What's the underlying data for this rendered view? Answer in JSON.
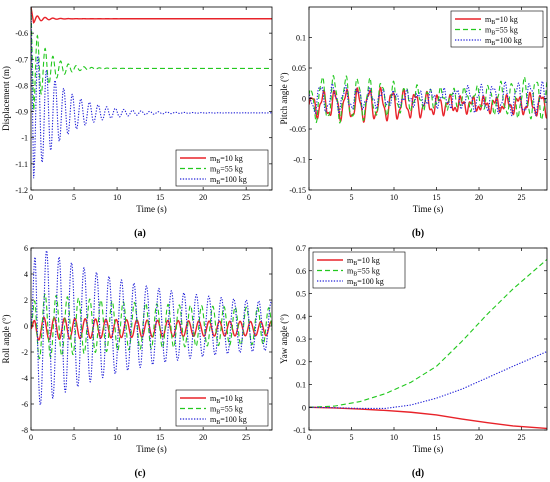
{
  "chart_data": [
    {
      "panel": "a",
      "caption": "(a)",
      "type": "line",
      "xlabel": "Time (s)",
      "ylabel": "Displacement (m)",
      "xlim": [
        0,
        28
      ],
      "ylim": [
        -1.2,
        -0.5
      ],
      "xticks": [
        0,
        5,
        10,
        15,
        20,
        25
      ],
      "yticks": [
        -1.2,
        -1.1,
        -1,
        -0.9,
        -0.8,
        -0.7,
        -0.6
      ],
      "legend_position": "bottom-right",
      "legend": [
        {
          "label": "mB=10 kg",
          "sub": "B",
          "text_pre": "m",
          "text_post": "=10 kg",
          "color": "#e8232a",
          "style": "solid"
        },
        {
          "label": "mB=55 kg",
          "sub": "B",
          "text_pre": "m",
          "text_post": "=55 kg",
          "color": "#22c81e",
          "style": "dashed"
        },
        {
          "label": "mB=100 kg",
          "sub": "B",
          "text_pre": "m",
          "text_post": "=100 kg",
          "color": "#2020d8",
          "style": "dotted"
        }
      ],
      "series": [
        {
          "name": "mB=10 kg",
          "model": "damped",
          "start": -0.5,
          "final": -0.545,
          "amp": 0.015,
          "period": 0.9,
          "decay": 0.8,
          "t0": 0.3
        },
        {
          "name": "mB=55 kg",
          "model": "damped",
          "start": -0.5,
          "final": -0.735,
          "amp": 0.16,
          "period": 0.9,
          "decay": 0.55,
          "t0": 0.3
        },
        {
          "name": "mB=100 kg",
          "model": "damped",
          "start": -0.5,
          "final": -0.905,
          "amp": 0.25,
          "period": 1.0,
          "decay": 0.28,
          "t0": 0.3
        }
      ]
    },
    {
      "panel": "b",
      "caption": "(b)",
      "type": "line",
      "xlabel": "Time (s)",
      "ylabel": "Pitch angle (°)",
      "xlim": [
        0,
        28
      ],
      "ylim": [
        -0.15,
        0.15
      ],
      "xticks": [
        0,
        5,
        10,
        15,
        20,
        25
      ],
      "yticks": [
        -0.15,
        -0.1,
        -0.05,
        0,
        0.05,
        0.1
      ],
      "legend_position": "top-right",
      "legend": [
        {
          "label": "mB=10 kg",
          "sub": "B",
          "text_pre": "m",
          "text_post": "=10 kg",
          "color": "#e8232a",
          "style": "solid"
        },
        {
          "label": "mB=55 kg",
          "sub": "B",
          "text_pre": "m",
          "text_post": "=55 kg",
          "color": "#22c81e",
          "style": "dashed"
        },
        {
          "label": "mB=100 kg",
          "sub": "B",
          "text_pre": "m",
          "text_post": "=100 kg",
          "color": "#2020d8",
          "style": "dotted"
        }
      ],
      "series": [
        {
          "name": "mB=10 kg",
          "model": "oscillation",
          "offset": -0.01,
          "amp": 0.02,
          "period": 1.35,
          "phase": 0.0
        },
        {
          "name": "mB=55 kg",
          "model": "oscillation",
          "offset": 0.0,
          "amp": 0.03,
          "period": 1.4,
          "phase": 1.0
        },
        {
          "name": "mB=100 kg",
          "model": "oscillation",
          "offset": 0.0,
          "amp": 0.02,
          "period": 1.45,
          "phase": 2.0
        }
      ]
    },
    {
      "panel": "c",
      "caption": "(c)",
      "type": "line",
      "xlabel": "Time (s)",
      "ylabel": "Roll angle (°)",
      "xlim": [
        0,
        28
      ],
      "ylim": [
        -8,
        6
      ],
      "xticks": [
        0,
        5,
        10,
        15,
        20,
        25
      ],
      "yticks": [
        -8,
        -6,
        -4,
        -2,
        0,
        2,
        4,
        6
      ],
      "legend_position": "bottom-right",
      "legend": [
        {
          "label": "mB=10 kg",
          "sub": "B",
          "text_pre": "m",
          "text_post": "=10 kg",
          "color": "#e8232a",
          "style": "solid"
        },
        {
          "label": "mB=55 kg",
          "sub": "B",
          "text_pre": "m",
          "text_post": "=55 kg",
          "color": "#22c81e",
          "style": "dashed"
        },
        {
          "label": "mB=100 kg",
          "sub": "B",
          "text_pre": "m",
          "text_post": "=100 kg",
          "color": "#2020d8",
          "style": "dotted"
        }
      ],
      "series": [
        {
          "name": "mB=10 kg",
          "model": "decaying",
          "offset": -0.2,
          "amp": 0.9,
          "floor": 0.45,
          "period": 1.2,
          "decay": 0.06
        },
        {
          "name": "mB=55 kg",
          "model": "decaying",
          "offset": 0.0,
          "amp": 2.6,
          "floor": 1.2,
          "period": 1.3,
          "decay": 0.07
        },
        {
          "name": "mB=100 kg",
          "model": "decaying",
          "offset": 0.0,
          "amp": 6.5,
          "floor": 1.3,
          "period": 1.45,
          "decay": 0.08
        }
      ]
    },
    {
      "panel": "d",
      "caption": "(d)",
      "type": "line",
      "xlabel": "Time (s)",
      "ylabel": "Yaw angle (°)",
      "xlim": [
        0,
        28
      ],
      "ylim": [
        -0.1,
        0.7
      ],
      "xticks": [
        0,
        5,
        10,
        15,
        20,
        25
      ],
      "yticks": [
        -0.1,
        0,
        0.1,
        0.2,
        0.3,
        0.4,
        0.5,
        0.6,
        0.7
      ],
      "legend_position": "top-left",
      "legend": [
        {
          "label": "mB=10 kg",
          "sub": "B",
          "text_pre": "m",
          "text_post": "=10 kg",
          "color": "#e8232a",
          "style": "solid"
        },
        {
          "label": "mB=55 kg",
          "sub": "B",
          "text_pre": "m",
          "text_post": "=55 kg",
          "color": "#22c81e",
          "style": "dashed"
        },
        {
          "label": "mB=100 kg",
          "sub": "B",
          "text_pre": "m",
          "text_post": "=100 kg",
          "color": "#2020d8",
          "style": "dotted"
        }
      ],
      "series": [
        {
          "name": "mB=10 kg",
          "model": "points",
          "x": [
            0,
            3,
            6,
            9,
            12,
            15,
            18,
            21,
            24,
            28
          ],
          "y": [
            0,
            -0.003,
            -0.008,
            -0.014,
            -0.022,
            -0.034,
            -0.052,
            -0.068,
            -0.082,
            -0.093
          ]
        },
        {
          "name": "mB=55 kg",
          "model": "points",
          "x": [
            0,
            3,
            6,
            9,
            12,
            15,
            18,
            21,
            24,
            28
          ],
          "y": [
            0,
            0.005,
            0.025,
            0.06,
            0.11,
            0.18,
            0.29,
            0.41,
            0.52,
            0.65
          ]
        },
        {
          "name": "mB=100 kg",
          "model": "points",
          "x": [
            0,
            3,
            6,
            9,
            12,
            15,
            18,
            21,
            24,
            28
          ],
          "y": [
            0,
            -0.002,
            -0.005,
            -0.005,
            0.01,
            0.04,
            0.08,
            0.13,
            0.18,
            0.245
          ]
        }
      ]
    }
  ]
}
